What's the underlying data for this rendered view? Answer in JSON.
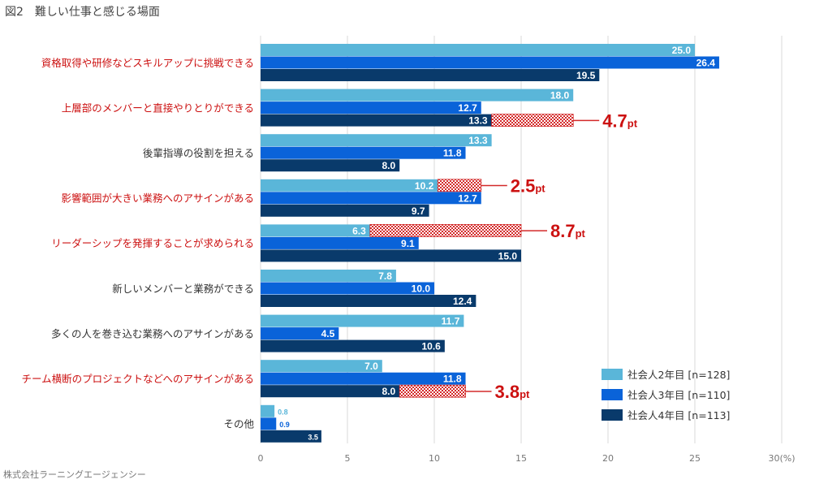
{
  "figure_title": "図2　難しい仕事と感じる場面",
  "credit": "株式会社ラーニングエージェンシー",
  "colors": {
    "series": [
      "#5ab6d9",
      "#0a63d9",
      "#093a6b"
    ],
    "highlight_label": "#cc1111",
    "normal_label": "#333333",
    "grid": "#d8d8d8",
    "hatch": "#d32a2a"
  },
  "chart_data": {
    "type": "bar",
    "orientation": "horizontal",
    "title": "難しい仕事と感じる場面",
    "xlabel": "",
    "ylabel": "",
    "xlim": [
      0,
      30
    ],
    "xticks": [
      0,
      5,
      10,
      15,
      20,
      25,
      30
    ],
    "xtick_labels": [
      "0",
      "5",
      "10",
      "15",
      "20",
      "25",
      "30(%)"
    ],
    "grid": true,
    "legend_position": "bottom-right",
    "categories": [
      "資格取得や研修などスキルアップに挑戦できる",
      "上層部のメンバーと直接やりとりができる",
      "後輩指導の役割を担える",
      "影響範囲が大きい業務へのアサインがある",
      "リーダーシップを発揮することが求められる",
      "新しいメンバーと業務ができる",
      "多くの人を巻き込む業務へのアサインがある",
      "チーム横断のプロジェクトなどへのアサインがある",
      "その他"
    ],
    "highlighted_categories": [
      true,
      true,
      false,
      true,
      true,
      false,
      false,
      true,
      false
    ],
    "series": [
      {
        "name": "社会人2年目 [n=128]",
        "values": [
          25.0,
          18.0,
          13.3,
          10.2,
          6.3,
          7.8,
          11.7,
          7.0,
          0.8
        ]
      },
      {
        "name": "社会人3年目 [n=110]",
        "values": [
          26.4,
          12.7,
          11.8,
          12.7,
          9.1,
          10.0,
          4.5,
          11.8,
          0.9
        ]
      },
      {
        "name": "社会人4年目 [n=113]",
        "values": [
          19.5,
          13.3,
          8.0,
          9.7,
          15.0,
          12.4,
          10.6,
          8.0,
          3.5
        ]
      }
    ],
    "value_labels": [
      [
        "25.0",
        "18.0",
        "13.3",
        "10.2",
        "6.3",
        "7.8",
        "11.7",
        "7.0",
        "0.8"
      ],
      [
        "26.4",
        "12.7",
        "11.8",
        "12.7",
        "9.1",
        "10.0",
        "4.5",
        "11.8",
        "0.9"
      ],
      [
        "19.5",
        "13.3",
        "8.0",
        "9.7",
        "15.0",
        "12.4",
        "10.6",
        "8.0",
        "3.5"
      ]
    ],
    "annotations": [
      {
        "category_index": 1,
        "series_index": 2,
        "from": 13.3,
        "to": 18.0,
        "label": "4.7pt"
      },
      {
        "category_index": 3,
        "series_index": 0,
        "from": 10.2,
        "to": 12.7,
        "label": "2.5pt"
      },
      {
        "category_index": 4,
        "series_index": 0,
        "from": 6.3,
        "to": 15.0,
        "label": "8.7pt"
      },
      {
        "category_index": 7,
        "series_index": 2,
        "from": 8.0,
        "to": 11.8,
        "label": "3.8pt"
      }
    ]
  }
}
